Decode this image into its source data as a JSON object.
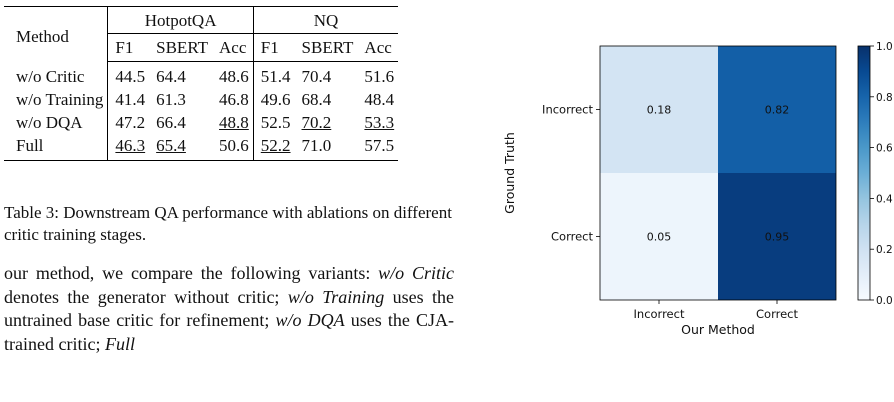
{
  "table": {
    "method_header": "Method",
    "groups": [
      "HotpotQA",
      "NQ"
    ],
    "subheaders": [
      "F1",
      "SBERT",
      "Acc",
      "F1",
      "SBERT",
      "Acc"
    ],
    "rows": [
      {
        "method": "w/o Critic",
        "values": [
          "44.5",
          "64.4",
          "48.6",
          "51.4",
          "70.4",
          "51.6"
        ],
        "styles": [
          "",
          "",
          "",
          "",
          "",
          ""
        ]
      },
      {
        "method": "w/o Training",
        "values": [
          "41.4",
          "61.3",
          "46.8",
          "49.6",
          "68.4",
          "48.4"
        ],
        "styles": [
          "",
          "",
          "",
          "",
          "",
          ""
        ]
      },
      {
        "method": "w/o DQA",
        "values": [
          "47.2",
          "66.4",
          "48.8",
          "52.5",
          "70.2",
          "53.3"
        ],
        "styles": [
          "bold",
          "bold",
          "underline",
          "bold",
          "underline",
          "underline"
        ]
      },
      {
        "method": "Full",
        "values": [
          "46.3",
          "65.4",
          "50.6",
          "52.2",
          "71.0",
          "57.5"
        ],
        "styles": [
          "underline",
          "underline",
          "bold",
          "underline",
          "bold",
          "bold"
        ]
      }
    ]
  },
  "caption": "Table 3: Downstream QA performance with ablations on different critic training stages.",
  "body": {
    "p1": "our method, we compare the following variants: ",
    "t1": "w/o Critic",
    "p2": " denotes the generator without critic; ",
    "t2": "w/o Training",
    "p3": " uses the untrained base critic for refinement; ",
    "t3": "w/o DQA",
    "p4": " uses the CJA-trained critic; ",
    "t4": "Full"
  },
  "chart_data": {
    "type": "heatmap",
    "title": "",
    "xlabel": "Our Method",
    "ylabel": "Ground Truth",
    "x_categories": [
      "Incorrect",
      "Correct"
    ],
    "y_categories": [
      "Incorrect",
      "Correct"
    ],
    "values": [
      [
        0.18,
        0.82
      ],
      [
        0.05,
        0.95
      ]
    ],
    "value_labels": [
      [
        "0.18",
        "0.82"
      ],
      [
        "0.05",
        "0.95"
      ]
    ],
    "colorbar": {
      "range": [
        0.0,
        1.0
      ],
      "ticks": [
        "0.0",
        "0.2",
        "0.4",
        "0.6",
        "0.8",
        "1.0"
      ]
    },
    "colormap": "Blues"
  }
}
